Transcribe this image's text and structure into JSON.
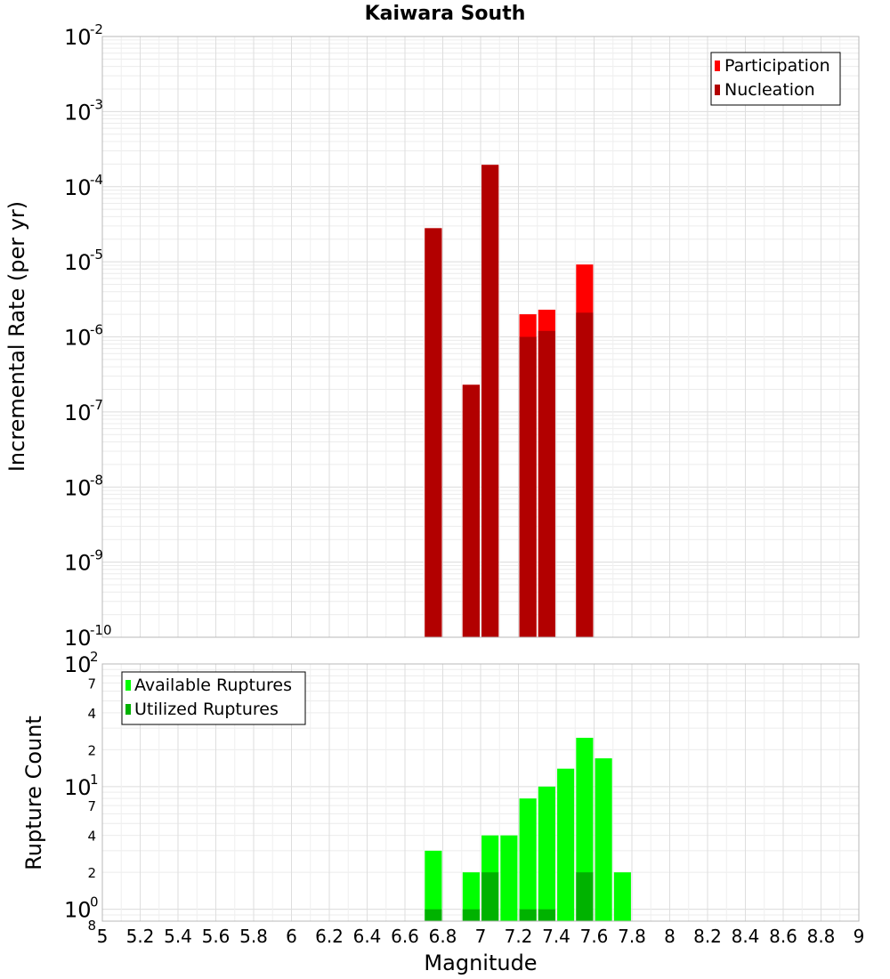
{
  "chart_data": [
    {
      "type": "bar",
      "title": "Kaiwara South",
      "ylabel": "Incremental Rate (per yr)",
      "yscale": "log",
      "ylim": [
        1e-10,
        0.01
      ],
      "xlim": [
        5,
        9
      ],
      "y_major_ticks": [
        {
          "value": 1e-10,
          "base": "10",
          "exp": "-10"
        },
        {
          "value": 1e-09,
          "base": "10",
          "exp": "-9"
        },
        {
          "value": 1e-08,
          "base": "10",
          "exp": "-8"
        },
        {
          "value": 1e-07,
          "base": "10",
          "exp": "-7"
        },
        {
          "value": 1e-06,
          "base": "10",
          "exp": "-6"
        },
        {
          "value": 1e-05,
          "base": "10",
          "exp": "-5"
        },
        {
          "value": 0.0001,
          "base": "10",
          "exp": "-4"
        },
        {
          "value": 0.001,
          "base": "10",
          "exp": "-3"
        },
        {
          "value": 0.01,
          "base": "10",
          "exp": "-2"
        }
      ],
      "bar_width": 0.09,
      "legend": {
        "position": "top-right",
        "entries": [
          {
            "label": "Participation",
            "color": "#ff0000"
          },
          {
            "label": "Nucleation",
            "color": "#b20000"
          }
        ]
      },
      "series": [
        {
          "name": "Participation",
          "color": "#ff0000",
          "x": [
            6.75,
            6.95,
            7.05,
            7.25,
            7.35,
            7.55
          ],
          "values": [
            2.8e-05,
            2.3e-07,
            0.000195,
            2e-06,
            2.3e-06,
            9.2e-06
          ]
        },
        {
          "name": "Nucleation",
          "color": "#b20000",
          "x": [
            6.75,
            6.95,
            7.05,
            7.25,
            7.35,
            7.55
          ],
          "values": [
            2.8e-05,
            2.3e-07,
            0.000195,
            1e-06,
            1.2e-06,
            2.1e-06
          ]
        }
      ]
    },
    {
      "type": "bar",
      "ylabel": "Rupture Count",
      "xlabel": "Magnitude",
      "yscale": "log",
      "ylim": [
        0.8,
        100
      ],
      "xlim": [
        5,
        9
      ],
      "x_ticks": [
        "5",
        "5.2",
        "5.4",
        "5.6",
        "5.8",
        "6",
        "6.2",
        "6.4",
        "6.6",
        "6.8",
        "7",
        "7.2",
        "7.4",
        "7.6",
        "7.8",
        "8",
        "8.2",
        "8.4",
        "8.6",
        "8.8",
        "9"
      ],
      "y_major_ticks": [
        {
          "value": 1,
          "base": "10",
          "exp": "0"
        },
        {
          "value": 10,
          "base": "10",
          "exp": "1"
        },
        {
          "value": 100,
          "base": "10",
          "exp": "2"
        }
      ],
      "y_minor_labels": [
        {
          "value": 0.8,
          "label": "8"
        },
        {
          "value": 2,
          "label": "2"
        },
        {
          "value": 4,
          "label": "4"
        },
        {
          "value": 7,
          "label": "7"
        },
        {
          "value": 20,
          "label": "2"
        },
        {
          "value": 40,
          "label": "4"
        },
        {
          "value": 70,
          "label": "7"
        }
      ],
      "bar_width": 0.09,
      "legend": {
        "position": "top-left",
        "entries": [
          {
            "label": "Available Ruptures",
            "color": "#00ff00"
          },
          {
            "label": "Utilized Ruptures",
            "color": "#00b200"
          }
        ]
      },
      "series": [
        {
          "name": "Available Ruptures",
          "color": "#00ff00",
          "x": [
            6.75,
            6.95,
            7.05,
            7.15,
            7.25,
            7.35,
            7.45,
            7.55,
            7.65,
            7.75
          ],
          "values": [
            3,
            2,
            4,
            4,
            8,
            10,
            14,
            25,
            17,
            2
          ]
        },
        {
          "name": "Utilized Ruptures",
          "color": "#00b200",
          "x": [
            6.75,
            6.95,
            7.05,
            7.15,
            7.25,
            7.35,
            7.45,
            7.55,
            7.65,
            7.75
          ],
          "values": [
            1,
            1,
            2,
            0,
            1,
            1,
            0,
            2,
            0,
            0
          ]
        }
      ]
    }
  ]
}
